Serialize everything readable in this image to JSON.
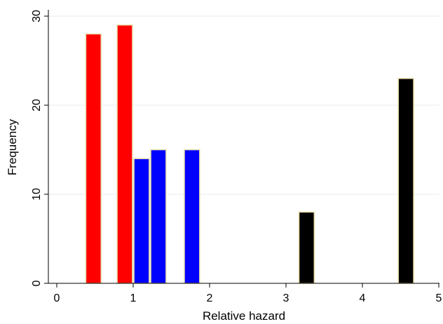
{
  "chart_data": {
    "type": "bar",
    "title": "",
    "xlabel": "Relative hazard",
    "ylabel": "Frequency",
    "xlim": [
      0,
      5
    ],
    "ylim": [
      0,
      30
    ],
    "xticks": [
      0,
      1,
      2,
      3,
      4,
      5
    ],
    "yticks": [
      0,
      10,
      20,
      30
    ],
    "grid": true,
    "bar_width": 0.2,
    "bars": [
      {
        "x": 0.48,
        "value": 28,
        "color": "#ff0000"
      },
      {
        "x": 0.89,
        "value": 29,
        "color": "#ff0000"
      },
      {
        "x": 1.11,
        "value": 14,
        "color": "#0000ff"
      },
      {
        "x": 1.33,
        "value": 15,
        "color": "#0000ff"
      },
      {
        "x": 1.77,
        "value": 15,
        "color": "#0000ff"
      },
      {
        "x": 3.27,
        "value": 8,
        "color": "#000000"
      },
      {
        "x": 4.57,
        "value": 23,
        "color": "#000000"
      }
    ]
  }
}
